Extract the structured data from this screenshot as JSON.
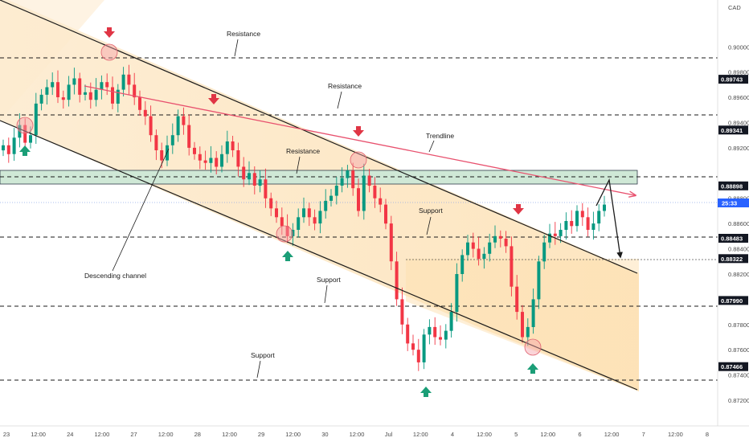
{
  "chart_data": {
    "type": "candlestick",
    "currency": "CAD",
    "price_label": "25:33",
    "x_ticks": [
      "23",
      "12:00",
      "24",
      "12:00",
      "27",
      "12:00",
      "28",
      "12:00",
      "29",
      "12:00",
      "30",
      "12:00",
      "Jul",
      "12:00",
      "4",
      "12:00",
      "5",
      "12:00",
      "6",
      "12:00",
      "7",
      "12:00",
      "8"
    ],
    "y_ticks": [
      "0.90000",
      "0.89800",
      "0.89600",
      "0.89400",
      "0.89200",
      "0.88800",
      "0.88600",
      "0.88400",
      "0.88200",
      "0.87800",
      "0.87600",
      "0.87400",
      "0.87200"
    ],
    "levels": [
      "0.89743",
      "0.89341",
      "0.88898",
      "0.88483",
      "0.88322",
      "0.87990",
      "0.87466"
    ],
    "annotations": [
      {
        "label": "Resistance"
      },
      {
        "label": "Resistance"
      },
      {
        "label": "Resistance"
      },
      {
        "label": "Trendline"
      },
      {
        "label": "Support"
      },
      {
        "label": "Support"
      },
      {
        "label": "Support"
      },
      {
        "label": "Descending channel"
      }
    ],
    "y_range": [
      0.8706,
      0.9032
    ],
    "ohlc_approx": [
      0.8922,
      0.8915,
      0.8928,
      0.8938,
      0.8924,
      0.893,
      0.8955,
      0.8962,
      0.8968,
      0.8972,
      0.896,
      0.8958,
      0.897,
      0.8975,
      0.8962,
      0.8964,
      0.8958,
      0.8966,
      0.8972,
      0.8968,
      0.8955,
      0.8966,
      0.8978,
      0.897,
      0.896,
      0.895,
      0.8945,
      0.893,
      0.8918,
      0.891,
      0.8922,
      0.893,
      0.8945,
      0.8938,
      0.892,
      0.8915,
      0.891,
      0.8908,
      0.8912,
      0.8905,
      0.8915,
      0.8925,
      0.8918,
      0.8905,
      0.8895,
      0.89,
      0.889,
      0.8895,
      0.888,
      0.8872,
      0.8865,
      0.8858,
      0.885,
      0.8855,
      0.8865,
      0.8872,
      0.8865,
      0.886,
      0.887,
      0.8878,
      0.8882,
      0.889,
      0.8896,
      0.8902,
      0.8888,
      0.887,
      0.8898,
      0.889,
      0.888,
      0.8875,
      0.886,
      0.883,
      0.88,
      0.878,
      0.8765,
      0.876,
      0.875,
      0.8772,
      0.8778,
      0.877,
      0.8768,
      0.8775,
      0.879,
      0.882,
      0.8835,
      0.8845,
      0.884,
      0.8832,
      0.8836,
      0.8845,
      0.885,
      0.8848,
      0.8842,
      0.881,
      0.879,
      0.877,
      0.8778,
      0.88,
      0.883,
      0.8845,
      0.8852,
      0.885,
      0.8855,
      0.8862,
      0.8858,
      0.887,
      0.8865,
      0.8855,
      0.886,
      0.887,
      0.8875
    ]
  },
  "colors": {
    "bull": "#089981",
    "bear": "#f23645",
    "trendline": "#e8516e",
    "channel": "#1a1a1a",
    "zone_fill": "#cfe8d6",
    "fill": "#fde6c2",
    "label_bg": "#131722",
    "price_label_bg": "#2962ff"
  }
}
